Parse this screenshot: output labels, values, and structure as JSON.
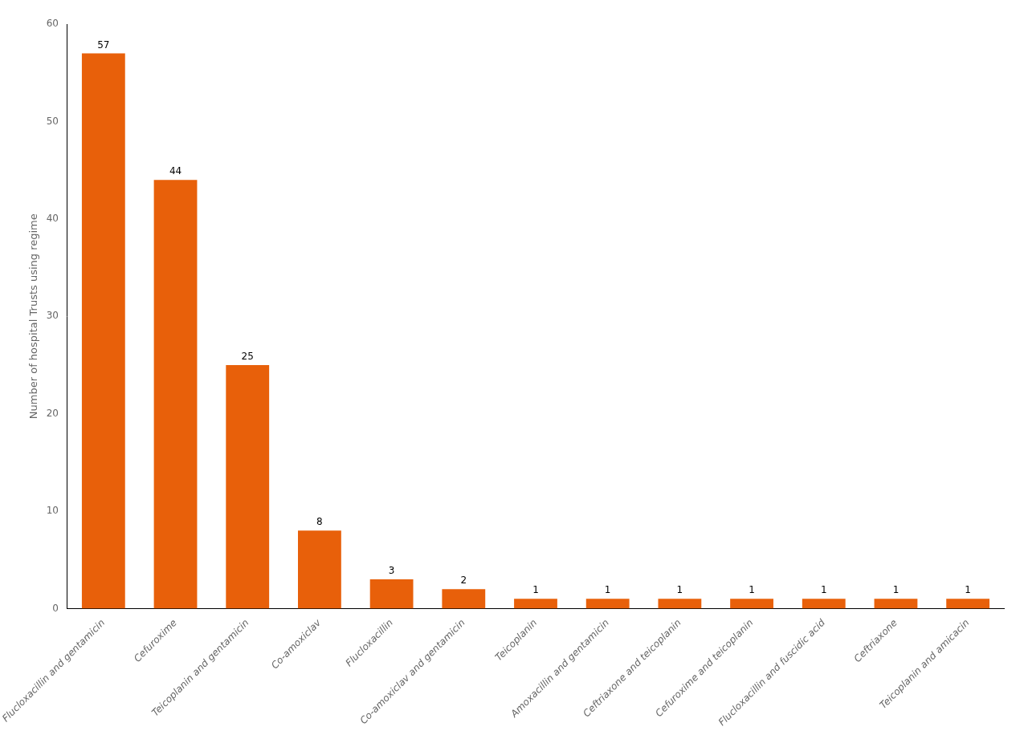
{
  "chart_data": {
    "type": "bar",
    "categories": [
      "Flucloxacillin and gentamicin",
      "Cefuroxime",
      "Teicoplanin and gentamicin",
      "Co-amoxiclav",
      "Flucloxacillin",
      "Co-amoxiclav and gentamicin",
      "Teicoplanin",
      "Amoxacillin and gentamicin",
      "Ceftriaxone and teicoplanin",
      "Cefuroxime and teicoplanin",
      "Flucloxacillin and fuscidic acid",
      "Ceftriaxone",
      "Teicoplanin and amicacin"
    ],
    "values": [
      57,
      44,
      25,
      8,
      3,
      2,
      1,
      1,
      1,
      1,
      1,
      1,
      1
    ],
    "color": "#E8600A",
    "ylabel": "Number of hospital Trusts using regime",
    "ylim": [
      0,
      60
    ],
    "yticks": [
      0,
      10,
      20,
      30,
      40,
      50,
      60
    ],
    "grid": false,
    "data_labels": true
  }
}
